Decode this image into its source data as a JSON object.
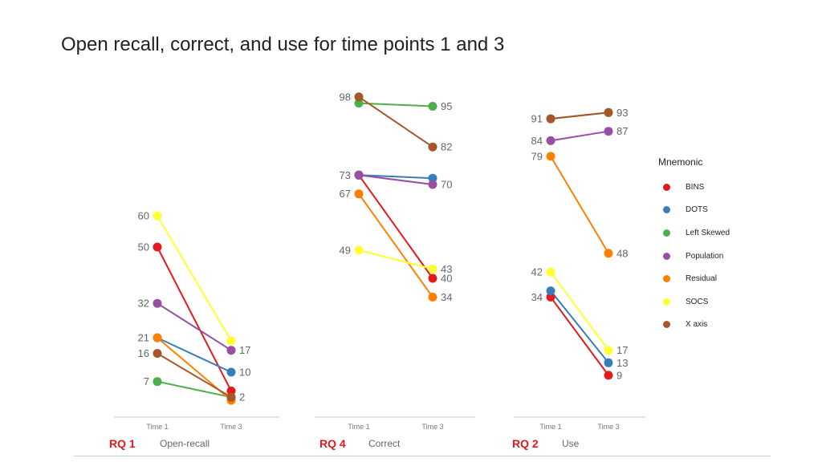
{
  "title": "Open recall, correct, and use for time points 1 and 3",
  "legend": {
    "title": "Mnemonic",
    "items": [
      {
        "label": "BINS",
        "color": "#e41a1c"
      },
      {
        "label": "DOTS",
        "color": "#377eb8"
      },
      {
        "label": "Left Skewed",
        "color": "#4daf4a"
      },
      {
        "label": "Population",
        "color": "#984ea3"
      },
      {
        "label": "Residual",
        "color": "#ff7f00"
      },
      {
        "label": "SOCS",
        "color": "#ffff33"
      },
      {
        "label": "X axis",
        "color": "#a65628"
      }
    ]
  },
  "chart_data": [
    {
      "type": "line",
      "rq_label": "RQ 1",
      "panel_label": "Open-recall",
      "categories": [
        "Time 1",
        "Time 3"
      ],
      "ylim": [
        0,
        100
      ],
      "series": [
        {
          "name": "BINS",
          "values": [
            50,
            4
          ]
        },
        {
          "name": "DOTS",
          "values": [
            21,
            10
          ]
        },
        {
          "name": "Left Skewed",
          "values": [
            7,
            2
          ]
        },
        {
          "name": "Population",
          "values": [
            32,
            17
          ]
        },
        {
          "name": "Residual",
          "values": [
            21,
            1
          ]
        },
        {
          "name": "SOCS",
          "values": [
            60,
            20
          ]
        },
        {
          "name": "X axis",
          "values": [
            16,
            2
          ]
        }
      ],
      "left_labels": [
        "60",
        "50",
        "32",
        "21",
        "16",
        "7"
      ],
      "right_labels": [
        "17",
        "10",
        "2"
      ]
    },
    {
      "type": "line",
      "rq_label": "RQ 4",
      "panel_label": "Correct",
      "categories": [
        "Time 1",
        "Time 3"
      ],
      "ylim": [
        0,
        100
      ],
      "series": [
        {
          "name": "BINS",
          "values": [
            73,
            40
          ]
        },
        {
          "name": "DOTS",
          "values": [
            73,
            72
          ]
        },
        {
          "name": "Left Skewed",
          "values": [
            96,
            95
          ]
        },
        {
          "name": "Population",
          "values": [
            73,
            70
          ]
        },
        {
          "name": "Residual",
          "values": [
            67,
            34
          ]
        },
        {
          "name": "SOCS",
          "values": [
            49,
            43
          ]
        },
        {
          "name": "X axis",
          "values": [
            98,
            82
          ]
        }
      ],
      "left_labels": [
        "98",
        "73",
        "67",
        "49"
      ],
      "right_labels": [
        "95",
        "82",
        "70",
        "43",
        "40",
        "34"
      ]
    },
    {
      "type": "line",
      "rq_label": "RQ 2",
      "panel_label": "Use",
      "categories": [
        "Time 1",
        "Time 3"
      ],
      "ylim": [
        0,
        100
      ],
      "series": [
        {
          "name": "BINS",
          "values": [
            34,
            9
          ]
        },
        {
          "name": "DOTS",
          "values": [
            36,
            13
          ]
        },
        {
          "name": "Left Skewed",
          "values": [
            91,
            93
          ]
        },
        {
          "name": "Population",
          "values": [
            84,
            87
          ]
        },
        {
          "name": "Residual",
          "values": [
            79,
            48
          ]
        },
        {
          "name": "SOCS",
          "values": [
            42,
            17
          ]
        },
        {
          "name": "X axis",
          "values": [
            91,
            93
          ]
        }
      ],
      "left_labels": [
        "91",
        "84",
        "79",
        "42",
        "34"
      ],
      "right_labels": [
        "93",
        "87",
        "48",
        "17",
        "13",
        "9"
      ]
    }
  ]
}
